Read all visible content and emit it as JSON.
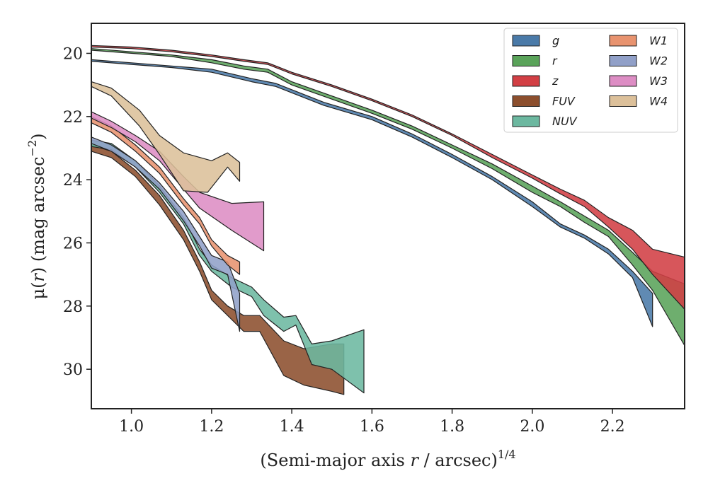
{
  "chart_data": {
    "type": "area",
    "xlabel_main": "(Semi-major axis ",
    "xlabel_var": "r",
    "xlabel_tail": " / arcsec)",
    "xlabel_exp": "1/4",
    "ylabel_main": "μ(",
    "ylabel_var": "r",
    "ylabel_tail": ") (mag arcsec",
    "ylabel_exp": "−2",
    "ylabel_close": ")",
    "xlim": [
      0.9,
      2.38
    ],
    "ylim": [
      31.25,
      19.05
    ],
    "y_inverted": true,
    "grid": false,
    "legend_position": "top-right",
    "x_ticks": [
      {
        "value": 1.0,
        "label": "1.0"
      },
      {
        "value": 1.2,
        "label": "1.2"
      },
      {
        "value": 1.4,
        "label": "1.4"
      },
      {
        "value": 1.6,
        "label": "1.6"
      },
      {
        "value": 1.8,
        "label": "1.8"
      },
      {
        "value": 2.0,
        "label": "2.0"
      },
      {
        "value": 2.2,
        "label": "2.2"
      }
    ],
    "y_ticks": [
      {
        "value": 20,
        "label": "20"
      },
      {
        "value": 22,
        "label": "22"
      },
      {
        "value": 24,
        "label": "24"
      },
      {
        "value": 26,
        "label": "26"
      },
      {
        "value": 28,
        "label": "28"
      },
      {
        "value": 30,
        "label": "30"
      }
    ],
    "series": [
      {
        "name": "FUV",
        "color": "#8c4f2e",
        "upper": [
          [
            0.9,
            22.9
          ],
          [
            0.95,
            23.1
          ],
          [
            1.01,
            23.7
          ],
          [
            1.07,
            24.5
          ],
          [
            1.13,
            25.6
          ],
          [
            1.17,
            26.6
          ],
          [
            1.2,
            27.5
          ],
          [
            1.24,
            28.0
          ],
          [
            1.28,
            28.3
          ],
          [
            1.32,
            28.3
          ],
          [
            1.38,
            29.1
          ],
          [
            1.43,
            29.35
          ],
          [
            1.5,
            29.2
          ],
          [
            1.53,
            29.2
          ]
        ],
        "lower": [
          [
            0.9,
            23.1
          ],
          [
            0.95,
            23.3
          ],
          [
            1.01,
            23.9
          ],
          [
            1.07,
            24.8
          ],
          [
            1.13,
            25.9
          ],
          [
            1.17,
            26.9
          ],
          [
            1.2,
            27.8
          ],
          [
            1.24,
            28.3
          ],
          [
            1.28,
            28.8
          ],
          [
            1.32,
            28.8
          ],
          [
            1.38,
            30.2
          ],
          [
            1.43,
            30.5
          ],
          [
            1.5,
            30.7
          ],
          [
            1.53,
            30.8
          ]
        ]
      },
      {
        "name": "NUV",
        "color": "#6cb8a0",
        "upper": [
          [
            0.9,
            22.75
          ],
          [
            0.95,
            22.85
          ],
          [
            1.01,
            23.4
          ],
          [
            1.07,
            24.2
          ],
          [
            1.13,
            25.2
          ],
          [
            1.17,
            26.2
          ],
          [
            1.2,
            26.7
          ],
          [
            1.25,
            27.1
          ],
          [
            1.3,
            27.4
          ],
          [
            1.33,
            27.8
          ],
          [
            1.38,
            28.35
          ],
          [
            1.41,
            28.3
          ],
          [
            1.45,
            29.2
          ],
          [
            1.5,
            29.1
          ],
          [
            1.58,
            28.75
          ]
        ],
        "lower": [
          [
            0.9,
            22.95
          ],
          [
            0.95,
            23.05
          ],
          [
            1.01,
            23.6
          ],
          [
            1.07,
            24.4
          ],
          [
            1.13,
            25.4
          ],
          [
            1.17,
            26.4
          ],
          [
            1.2,
            26.9
          ],
          [
            1.25,
            27.4
          ],
          [
            1.3,
            27.7
          ],
          [
            1.33,
            28.3
          ],
          [
            1.38,
            28.8
          ],
          [
            1.41,
            28.6
          ],
          [
            1.45,
            29.85
          ],
          [
            1.5,
            30.0
          ],
          [
            1.58,
            30.75
          ]
        ]
      },
      {
        "name": "W2",
        "color": "#91a0c8",
        "upper": [
          [
            0.9,
            22.65
          ],
          [
            0.95,
            22.9
          ],
          [
            1.01,
            23.4
          ],
          [
            1.07,
            24.1
          ],
          [
            1.13,
            25.0
          ],
          [
            1.17,
            25.8
          ],
          [
            1.2,
            26.4
          ],
          [
            1.24,
            26.6
          ],
          [
            1.27,
            27.6
          ]
        ],
        "lower": [
          [
            0.9,
            22.85
          ],
          [
            0.95,
            23.1
          ],
          [
            1.01,
            23.6
          ],
          [
            1.07,
            24.3
          ],
          [
            1.13,
            25.3
          ],
          [
            1.17,
            26.1
          ],
          [
            1.2,
            26.8
          ],
          [
            1.24,
            27.0
          ],
          [
            1.27,
            28.8
          ]
        ]
      },
      {
        "name": "W1",
        "color": "#e8936f",
        "upper": [
          [
            0.9,
            22.0
          ],
          [
            0.95,
            22.3
          ],
          [
            1.01,
            22.9
          ],
          [
            1.07,
            23.6
          ],
          [
            1.13,
            24.6
          ],
          [
            1.17,
            25.2
          ],
          [
            1.2,
            25.9
          ],
          [
            1.24,
            26.4
          ],
          [
            1.27,
            26.6
          ]
        ],
        "lower": [
          [
            0.9,
            22.2
          ],
          [
            0.95,
            22.5
          ],
          [
            1.01,
            23.1
          ],
          [
            1.07,
            23.8
          ],
          [
            1.13,
            24.8
          ],
          [
            1.17,
            25.4
          ],
          [
            1.2,
            26.1
          ],
          [
            1.24,
            26.7
          ],
          [
            1.27,
            27.0
          ]
        ]
      },
      {
        "name": "W3",
        "color": "#dd8dc4",
        "upper": [
          [
            0.9,
            21.85
          ],
          [
            0.95,
            22.15
          ],
          [
            1.01,
            22.6
          ],
          [
            1.07,
            23.1
          ],
          [
            1.13,
            23.9
          ],
          [
            1.17,
            24.4
          ],
          [
            1.25,
            24.75
          ],
          [
            1.33,
            24.7
          ]
        ],
        "lower": [
          [
            0.9,
            22.05
          ],
          [
            0.95,
            22.35
          ],
          [
            1.01,
            22.8
          ],
          [
            1.07,
            23.4
          ],
          [
            1.13,
            24.3
          ],
          [
            1.17,
            24.9
          ],
          [
            1.25,
            25.6
          ],
          [
            1.33,
            26.25
          ]
        ]
      },
      {
        "name": "W4",
        "color": "#dcc09a",
        "upper": [
          [
            0.9,
            20.9
          ],
          [
            0.95,
            21.1
          ],
          [
            1.02,
            21.8
          ],
          [
            1.07,
            22.6
          ],
          [
            1.13,
            23.15
          ],
          [
            1.2,
            23.4
          ],
          [
            1.24,
            23.15
          ],
          [
            1.27,
            23.45
          ]
        ],
        "lower": [
          [
            0.9,
            21.05
          ],
          [
            0.95,
            21.35
          ],
          [
            1.02,
            22.3
          ],
          [
            1.07,
            23.2
          ],
          [
            1.13,
            24.35
          ],
          [
            1.19,
            24.4
          ],
          [
            1.24,
            23.6
          ],
          [
            1.27,
            24.05
          ]
        ]
      },
      {
        "name": "g",
        "color": "#4a7aa8",
        "upper": [
          [
            0.9,
            20.2
          ],
          [
            1.0,
            20.3
          ],
          [
            1.1,
            20.4
          ],
          [
            1.2,
            20.5
          ],
          [
            1.3,
            20.8
          ],
          [
            1.36,
            20.95
          ],
          [
            1.48,
            21.55
          ],
          [
            1.6,
            22.0
          ],
          [
            1.7,
            22.55
          ],
          [
            1.8,
            23.2
          ],
          [
            1.9,
            23.9
          ],
          [
            2.0,
            24.7
          ],
          [
            2.07,
            25.4
          ],
          [
            2.13,
            25.75
          ],
          [
            2.19,
            26.2
          ],
          [
            2.25,
            26.9
          ],
          [
            2.3,
            27.6
          ]
        ],
        "lower": [
          [
            0.9,
            20.25
          ],
          [
            1.0,
            20.35
          ],
          [
            1.1,
            20.45
          ],
          [
            1.2,
            20.6
          ],
          [
            1.3,
            20.9
          ],
          [
            1.36,
            21.05
          ],
          [
            1.48,
            21.65
          ],
          [
            1.6,
            22.1
          ],
          [
            1.7,
            22.65
          ],
          [
            1.8,
            23.3
          ],
          [
            1.9,
            24.0
          ],
          [
            2.0,
            24.85
          ],
          [
            2.07,
            25.5
          ],
          [
            2.13,
            25.85
          ],
          [
            2.19,
            26.35
          ],
          [
            2.25,
            27.1
          ],
          [
            2.3,
            28.65
          ]
        ]
      },
      {
        "name": "r",
        "color": "#5aa35a",
        "upper": [
          [
            0.9,
            19.85
          ],
          [
            1.0,
            19.95
          ],
          [
            1.1,
            20.05
          ],
          [
            1.2,
            20.2
          ],
          [
            1.28,
            20.4
          ],
          [
            1.34,
            20.5
          ],
          [
            1.4,
            20.9
          ],
          [
            1.5,
            21.35
          ],
          [
            1.6,
            21.8
          ],
          [
            1.7,
            22.3
          ],
          [
            1.8,
            22.9
          ],
          [
            1.9,
            23.5
          ],
          [
            2.0,
            24.2
          ],
          [
            2.07,
            24.7
          ],
          [
            2.13,
            25.15
          ],
          [
            2.19,
            25.6
          ],
          [
            2.25,
            26.3
          ],
          [
            2.3,
            26.9
          ],
          [
            2.38,
            27.3
          ]
        ],
        "lower": [
          [
            0.9,
            19.9
          ],
          [
            1.0,
            20.0
          ],
          [
            1.1,
            20.1
          ],
          [
            1.2,
            20.3
          ],
          [
            1.28,
            20.5
          ],
          [
            1.34,
            20.6
          ],
          [
            1.4,
            21.0
          ],
          [
            1.5,
            21.45
          ],
          [
            1.6,
            21.9
          ],
          [
            1.7,
            22.4
          ],
          [
            1.8,
            23.0
          ],
          [
            1.9,
            23.65
          ],
          [
            2.0,
            24.4
          ],
          [
            2.07,
            24.85
          ],
          [
            2.13,
            25.35
          ],
          [
            2.19,
            25.8
          ],
          [
            2.25,
            26.7
          ],
          [
            2.3,
            27.5
          ],
          [
            2.38,
            29.25
          ]
        ]
      },
      {
        "name": "z",
        "color": "#d23f44",
        "upper": [
          [
            0.9,
            19.75
          ],
          [
            1.0,
            19.8
          ],
          [
            1.1,
            19.9
          ],
          [
            1.2,
            20.05
          ],
          [
            1.28,
            20.2
          ],
          [
            1.34,
            20.3
          ],
          [
            1.4,
            20.6
          ],
          [
            1.5,
            21.0
          ],
          [
            1.6,
            21.45
          ],
          [
            1.7,
            21.95
          ],
          [
            1.8,
            22.55
          ],
          [
            1.9,
            23.2
          ],
          [
            2.0,
            23.85
          ],
          [
            2.07,
            24.3
          ],
          [
            2.13,
            24.65
          ],
          [
            2.19,
            25.2
          ],
          [
            2.25,
            25.6
          ],
          [
            2.3,
            26.2
          ],
          [
            2.38,
            26.45
          ]
        ],
        "lower": [
          [
            0.9,
            19.8
          ],
          [
            1.0,
            19.85
          ],
          [
            1.1,
            19.95
          ],
          [
            1.2,
            20.1
          ],
          [
            1.28,
            20.25
          ],
          [
            1.34,
            20.35
          ],
          [
            1.4,
            20.65
          ],
          [
            1.5,
            21.05
          ],
          [
            1.6,
            21.5
          ],
          [
            1.7,
            22.0
          ],
          [
            1.8,
            22.6
          ],
          [
            1.9,
            23.3
          ],
          [
            2.0,
            23.95
          ],
          [
            2.07,
            24.45
          ],
          [
            2.13,
            24.85
          ],
          [
            2.19,
            25.5
          ],
          [
            2.25,
            26.2
          ],
          [
            2.3,
            27.0
          ],
          [
            2.38,
            28.1
          ]
        ]
      }
    ],
    "legend": [
      {
        "name": "g",
        "color": "#4a7aa8"
      },
      {
        "name": "r",
        "color": "#5aa35a"
      },
      {
        "name": "z",
        "color": "#d23f44"
      },
      {
        "name": "FUV",
        "color": "#8c4f2e"
      },
      {
        "name": "NUV",
        "color": "#6cb8a0"
      },
      {
        "name": "W1",
        "color": "#e8936f"
      },
      {
        "name": "W2",
        "color": "#91a0c8"
      },
      {
        "name": "W3",
        "color": "#dd8dc4"
      },
      {
        "name": "W4",
        "color": "#dcc09a"
      }
    ]
  }
}
